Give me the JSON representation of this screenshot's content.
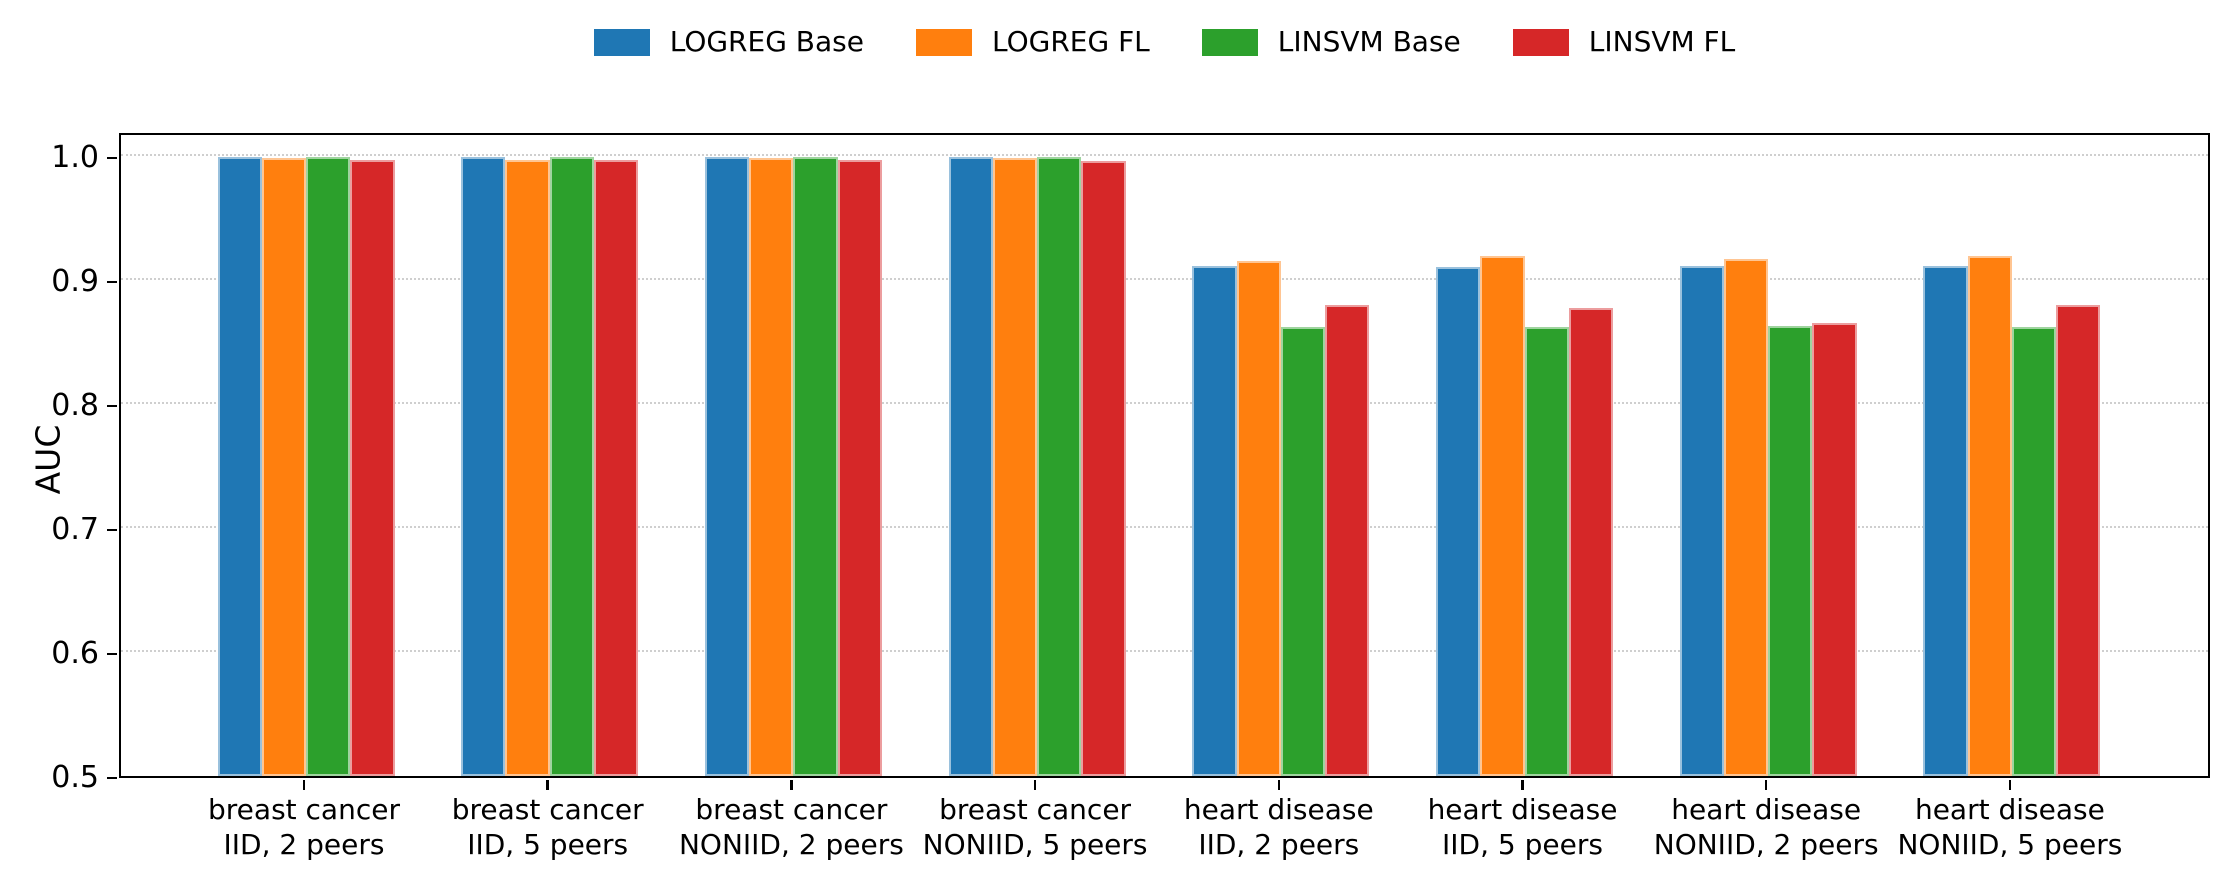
{
  "chart_data": {
    "type": "bar",
    "title": "",
    "xlabel": "",
    "ylabel": "AUC",
    "ylim": [
      0.5,
      1.02
    ],
    "yticks": [
      0.5,
      0.6,
      0.7,
      0.8,
      0.9,
      1.0
    ],
    "grid": "horizontal-dotted",
    "legend_position": "top center",
    "categories": [
      "breast cancer\nIID, 2 peers",
      "breast cancer\nIID, 5 peers",
      "breast cancer\nNONIID, 2 peers",
      "breast cancer\nNONIID, 5 peers",
      "heart disease\nIID, 2 peers",
      "heart disease\nIID, 5 peers",
      "heart disease\nNONIID, 2 peers",
      "heart disease\nNONIID, 5 peers"
    ],
    "series": [
      {
        "name": "LOGREG Base",
        "color": "#1f77b4",
        "values": [
          0.999,
          0.999,
          0.999,
          0.999,
          0.911,
          0.91,
          0.911,
          0.911
        ]
      },
      {
        "name": "LOGREG FL",
        "color": "#ff7f0e",
        "values": [
          0.998,
          0.997,
          0.998,
          0.998,
          0.915,
          0.919,
          0.917,
          0.919
        ]
      },
      {
        "name": "LINSVM Base",
        "color": "#2ca02c",
        "values": [
          0.999,
          0.999,
          0.999,
          0.999,
          0.862,
          0.862,
          0.863,
          0.862
        ]
      },
      {
        "name": "LINSVM FL",
        "color": "#d62728",
        "values": [
          0.997,
          0.997,
          0.997,
          0.996,
          0.88,
          0.877,
          0.865,
          0.88
        ]
      }
    ]
  }
}
